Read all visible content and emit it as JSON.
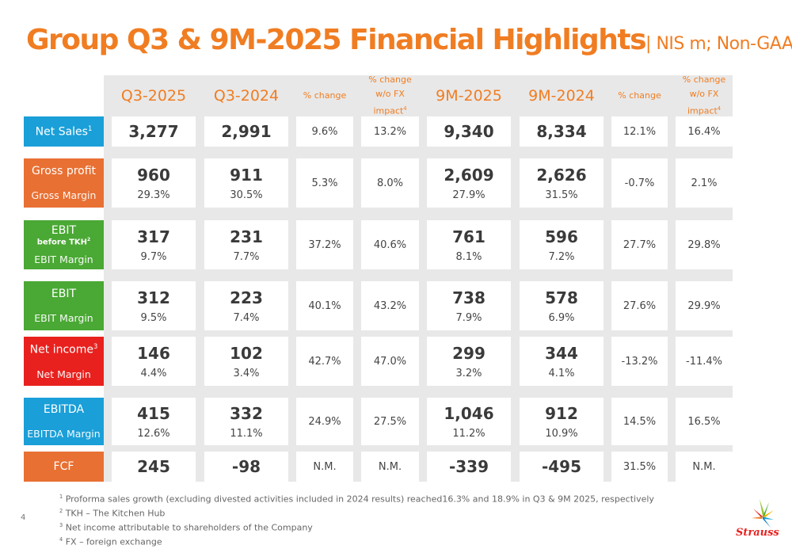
{
  "title": {
    "main": "Group Q3 & 9M-2025 Financial Highlights",
    "sub": "| NIS m; Non-GAAP"
  },
  "headers": [
    "Q3-2025",
    "Q3-2024",
    "% change",
    "% change w/o FX impact",
    "9M-2025",
    "9M-2024",
    "% change",
    "% change w/o FX impact"
  ],
  "header_sup": "4",
  "rows": [
    {
      "label": "Net Sales",
      "sup": "1",
      "sublabel": "",
      "color": "#1a9fd8",
      "values": [
        "3,277",
        "2,991",
        "9.6%",
        "13.2%",
        "9,340",
        "8,334",
        "12.1%",
        "16.4%"
      ],
      "margins": [
        "",
        "",
        "",
        "",
        "",
        "",
        "",
        ""
      ]
    },
    {
      "label": "Gross profit",
      "sup": "",
      "sublabel": "Gross Margin",
      "color": "#e87033",
      "values": [
        "960",
        "911",
        "5.3%",
        "8.0%",
        "2,609",
        "2,626",
        "-0.7%",
        "2.1%"
      ],
      "margins": [
        "29.3%",
        "30.5%",
        "",
        "",
        "27.9%",
        "31.5%",
        "",
        ""
      ]
    },
    {
      "label": "EBIT",
      "sup": "",
      "label2": "before TKH",
      "sup2": "2",
      "sublabel": "EBIT Margin",
      "color": "#4aa834",
      "values": [
        "317",
        "231",
        "37.2%",
        "40.6%",
        "761",
        "596",
        "27.7%",
        "29.8%"
      ],
      "margins": [
        "9.7%",
        "7.7%",
        "",
        "",
        "8.1%",
        "7.2%",
        "",
        ""
      ]
    },
    {
      "label": "EBIT",
      "sup": "",
      "sublabel": "EBIT Margin",
      "color": "#4aa834",
      "values": [
        "312",
        "223",
        "40.1%",
        "43.2%",
        "738",
        "578",
        "27.6%",
        "29.9%"
      ],
      "margins": [
        "9.5%",
        "7.4%",
        "",
        "",
        "7.9%",
        "6.9%",
        "",
        ""
      ]
    },
    {
      "label": "Net income",
      "sup": "3",
      "sublabel": "Net Margin",
      "color": "#e8211e",
      "values": [
        "146",
        "102",
        "42.7%",
        "47.0%",
        "299",
        "344",
        "-13.2%",
        "-11.4%"
      ],
      "margins": [
        "4.4%",
        "3.4%",
        "",
        "",
        "3.2%",
        "4.1%",
        "",
        ""
      ]
    },
    {
      "label": "EBITDA",
      "sup": "",
      "sublabel": "EBITDA Margin",
      "color": "#1a9fd8",
      "values": [
        "415",
        "332",
        "24.9%",
        "27.5%",
        "1,046",
        "912",
        "14.5%",
        "16.5%"
      ],
      "margins": [
        "12.6%",
        "11.1%",
        "",
        "",
        "11.2%",
        "10.9%",
        "",
        ""
      ]
    },
    {
      "label": "FCF",
      "sup": "",
      "sublabel": "",
      "color": "#e87033",
      "values": [
        "245",
        "-98",
        "N.M.",
        "N.M.",
        "-339",
        "-495",
        "31.5%",
        "N.M."
      ],
      "margins": [
        "",
        "",
        "",
        "",
        "",
        "",
        "",
        ""
      ]
    }
  ],
  "footnotes": [
    {
      "n": "1",
      "text": "Proforma sales growth (excluding divested activities included in 2024 results) reached16.3% and 18.9% in Q3 & 9M 2025, respectively"
    },
    {
      "n": "2",
      "text": "TKH – The Kitchen Hub"
    },
    {
      "n": "3",
      "text": "Net income attributable to shareholders of the Company"
    },
    {
      "n": "4",
      "text": "FX – foreign exchange"
    }
  ],
  "page_number": "4",
  "logo_text": "Strauss",
  "colors": {
    "accent": "#f07d22"
  }
}
